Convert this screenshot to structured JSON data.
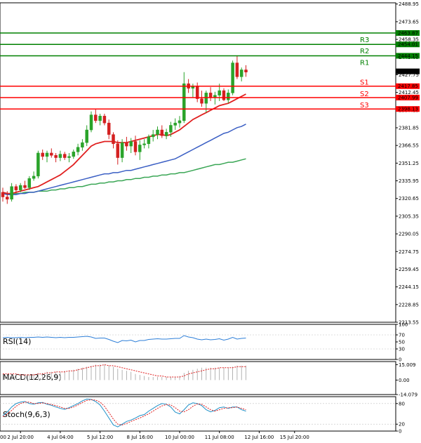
{
  "chart_data": [
    {
      "type": "candlestick",
      "panel": "price",
      "ylim": [
        2213.55,
        2490
      ],
      "y_ticks": [
        "2488.95",
        "2473.65",
        "2458.35",
        "2443.05",
        "2427.75",
        "2412.45",
        "2397.15",
        "2381.85",
        "2366.55",
        "2351.25",
        "2335.95",
        "2320.65",
        "2305.35",
        "2290.05",
        "2274.75",
        "2259.45",
        "2244.15",
        "2228.85",
        "2213.55"
      ],
      "x_ticks": [
        "2 Jul 20:00",
        "4 Jul 04:00",
        "5 Jul 12:00",
        "8 Jul 16:00",
        "10 Jul 00:00",
        "11 Jul 08:00",
        "12 Jul 16:00",
        "15 Jul 20:00"
      ],
      "x_tick_index": [
        4,
        13,
        22,
        31,
        40,
        49,
        58,
        66
      ],
      "candles": [
        [
          2326,
          2330,
          2318,
          2322
        ],
        [
          2322,
          2327,
          2316,
          2320
        ],
        [
          2320,
          2334,
          2318,
          2331
        ],
        [
          2331,
          2333,
          2325,
          2328
        ],
        [
          2328,
          2334,
          2326,
          2332
        ],
        [
          2332,
          2336,
          2329,
          2330
        ],
        [
          2330,
          2340,
          2328,
          2338
        ],
        [
          2338,
          2344,
          2336,
          2340
        ],
        [
          2340,
          2362,
          2338,
          2360
        ],
        [
          2360,
          2363,
          2354,
          2357
        ],
        [
          2357,
          2362,
          2352,
          2360
        ],
        [
          2360,
          2364,
          2356,
          2358
        ],
        [
          2358,
          2360,
          2352,
          2356
        ],
        [
          2356,
          2362,
          2353,
          2359
        ],
        [
          2359,
          2361,
          2354,
          2356
        ],
        [
          2356,
          2360,
          2352,
          2357
        ],
        [
          2357,
          2363,
          2355,
          2361
        ],
        [
          2361,
          2368,
          2358,
          2365
        ],
        [
          2365,
          2372,
          2362,
          2369
        ],
        [
          2369,
          2384,
          2366,
          2380
        ],
        [
          2380,
          2396,
          2378,
          2393
        ],
        [
          2393,
          2398,
          2386,
          2388
        ],
        [
          2388,
          2394,
          2384,
          2392
        ],
        [
          2392,
          2394,
          2384,
          2386
        ],
        [
          2386,
          2389,
          2372,
          2376
        ],
        [
          2376,
          2378,
          2364,
          2368
        ],
        [
          2368,
          2371,
          2350,
          2356
        ],
        [
          2356,
          2372,
          2352,
          2369
        ],
        [
          2369,
          2374,
          2362,
          2366
        ],
        [
          2366,
          2373,
          2360,
          2370
        ],
        [
          2370,
          2375,
          2358,
          2361
        ],
        [
          2361,
          2371,
          2354,
          2367
        ],
        [
          2367,
          2372,
          2364,
          2368
        ],
        [
          2368,
          2376,
          2364,
          2374
        ],
        [
          2374,
          2380,
          2370,
          2376
        ],
        [
          2376,
          2383,
          2372,
          2380
        ],
        [
          2380,
          2384,
          2373,
          2375
        ],
        [
          2375,
          2381,
          2372,
          2378
        ],
        [
          2378,
          2387,
          2374,
          2384
        ],
        [
          2384,
          2390,
          2380,
          2386
        ],
        [
          2386,
          2392,
          2382,
          2388
        ],
        [
          2388,
          2430,
          2386,
          2420
        ],
        [
          2420,
          2424,
          2412,
          2416
        ],
        [
          2416,
          2420,
          2408,
          2418
        ],
        [
          2418,
          2421,
          2404,
          2407
        ],
        [
          2407,
          2414,
          2400,
          2403
        ],
        [
          2403,
          2414,
          2395,
          2412
        ],
        [
          2412,
          2417,
          2405,
          2408
        ],
        [
          2408,
          2413,
          2402,
          2410
        ],
        [
          2410,
          2420,
          2405,
          2414
        ],
        [
          2414,
          2416,
          2405,
          2406
        ],
        [
          2406,
          2415,
          2403,
          2412
        ],
        [
          2412,
          2440,
          2410,
          2438
        ],
        [
          2438,
          2444,
          2424,
          2426
        ],
        [
          2426,
          2434,
          2422,
          2432
        ],
        [
          2432,
          2436,
          2426,
          2430
        ]
      ],
      "ma_red": [
        2326,
        2325,
        2325,
        2326,
        2327,
        2328,
        2329,
        2330,
        2331,
        2333,
        2335,
        2337,
        2339,
        2341,
        2344,
        2347,
        2350,
        2354,
        2358,
        2362,
        2366,
        2368,
        2369,
        2370,
        2370,
        2370,
        2369,
        2369,
        2369,
        2370,
        2371,
        2372,
        2373,
        2374,
        2375,
        2376,
        2376,
        2375,
        2376,
        2378,
        2380,
        2383,
        2386,
        2389,
        2391,
        2393,
        2395,
        2397,
        2399,
        2401,
        2402,
        2403,
        2405,
        2407,
        2409,
        2411
      ],
      "ma_blue": [
        2325,
        2324,
        2324,
        2324,
        2325,
        2325,
        2326,
        2326,
        2327,
        2328,
        2329,
        2330,
        2331,
        2332,
        2333,
        2334,
        2335,
        2336,
        2337,
        2338,
        2339,
        2340,
        2341,
        2342,
        2342,
        2343,
        2343,
        2344,
        2345,
        2345,
        2346,
        2347,
        2348,
        2349,
        2350,
        2351,
        2352,
        2353,
        2354,
        2355,
        2357,
        2359,
        2361,
        2363,
        2365,
        2367,
        2369,
        2371,
        2373,
        2375,
        2377,
        2378,
        2380,
        2382,
        2383,
        2385
      ],
      "ma_green": [
        2325,
        2325,
        2325,
        2325,
        2325,
        2326,
        2326,
        2326,
        2327,
        2327,
        2327,
        2328,
        2328,
        2329,
        2329,
        2330,
        2330,
        2331,
        2331,
        2332,
        2333,
        2333,
        2334,
        2334,
        2335,
        2335,
        2336,
        2336,
        2337,
        2337,
        2338,
        2338,
        2339,
        2339,
        2340,
        2340,
        2341,
        2341,
        2342,
        2342,
        2343,
        2343,
        2344,
        2345,
        2346,
        2347,
        2348,
        2349,
        2350,
        2350,
        2351,
        2352,
        2352,
        2353,
        2354,
        2355
      ],
      "levels": [
        {
          "name": "R3",
          "value": 2463.87,
          "label": "2463.87",
          "color": "#008000"
        },
        {
          "name": "R2",
          "value": 2454.01,
          "label": "2454.01",
          "color": "#008000"
        },
        {
          "name": "R1",
          "value": 2444.15,
          "label": "2444.15",
          "color": "#008000"
        },
        {
          "name": "S1",
          "value": 2417.85,
          "label": "2417.85",
          "color": "#ff0000"
        },
        {
          "name": "S2",
          "value": 2407.99,
          "label": "2407.99",
          "color": "#ff0000"
        },
        {
          "name": "S3",
          "value": 2398.13,
          "label": "2398.13",
          "color": "#ff0000"
        }
      ],
      "current_price": {
        "value": 2430.67,
        "label": "2430.67"
      }
    },
    {
      "type": "line",
      "panel": "rsi",
      "label": "RSI(14)",
      "ylim": [
        0,
        100
      ],
      "y_ticks": [
        "100",
        "70",
        "50",
        "30",
        "0"
      ],
      "values": [
        62,
        63,
        62,
        62,
        63,
        62,
        63,
        63,
        64,
        63,
        64,
        63,
        62,
        63,
        62,
        63,
        63,
        64,
        65,
        66,
        64,
        60,
        61,
        61,
        57,
        52,
        48,
        54,
        53,
        55,
        50,
        54,
        54,
        57,
        58,
        59,
        58,
        58,
        59,
        60,
        60,
        68,
        64,
        62,
        58,
        56,
        58,
        56,
        57,
        59,
        55,
        58,
        63,
        58,
        60,
        61
      ]
    },
    {
      "type": "bar",
      "panel": "macd",
      "label": "MACD(12,26,9)",
      "ylim": [
        -14.079,
        18
      ],
      "y_ticks": [
        "15.009",
        "0.00",
        "-14.079"
      ],
      "histogram": [
        6,
        6,
        5,
        5,
        5,
        5,
        5,
        6,
        7,
        7,
        8,
        8,
        8,
        8,
        9,
        9,
        10,
        11,
        12,
        13,
        14,
        15,
        15,
        15,
        14,
        13,
        11,
        10,
        9,
        8,
        6,
        5,
        4,
        3,
        3,
        3,
        3,
        3,
        3,
        3,
        4,
        7,
        9,
        10,
        11,
        12,
        12,
        12,
        12,
        12,
        12,
        12,
        13,
        14,
        14,
        14
      ],
      "signal": [
        6,
        6,
        6,
        6,
        5,
        5,
        5,
        5,
        6,
        6,
        7,
        7,
        8,
        8,
        8,
        9,
        9,
        10,
        11,
        12,
        13,
        14,
        14,
        15,
        14,
        14,
        13,
        12,
        11,
        10,
        9,
        8,
        7,
        6,
        5,
        4,
        4,
        3,
        3,
        3,
        3,
        4,
        6,
        7,
        8,
        9,
        10,
        11,
        11,
        12,
        12,
        12,
        12,
        13,
        13,
        13
      ]
    },
    {
      "type": "line",
      "panel": "stoch",
      "label": "Stoch(9,6,3)",
      "ylim": [
        0,
        100
      ],
      "y_ticks": [
        "80",
        "20",
        "0"
      ],
      "main": [
        45,
        55,
        70,
        80,
        84,
        86,
        80,
        78,
        82,
        83,
        78,
        75,
        70,
        66,
        63,
        68,
        74,
        80,
        88,
        93,
        92,
        86,
        76,
        58,
        38,
        18,
        12,
        20,
        28,
        32,
        38,
        45,
        48,
        58,
        66,
        74,
        80,
        78,
        70,
        55,
        50,
        62,
        76,
        82,
        80,
        74,
        62,
        56,
        60,
        68,
        70,
        66,
        70,
        70,
        62,
        58
      ],
      "signal": [
        42,
        50,
        60,
        72,
        80,
        84,
        84,
        80,
        80,
        82,
        80,
        77,
        74,
        70,
        66,
        66,
        70,
        76,
        83,
        89,
        91,
        90,
        84,
        72,
        54,
        35,
        20,
        18,
        22,
        28,
        33,
        38,
        44,
        50,
        58,
        66,
        73,
        77,
        76,
        68,
        58,
        56,
        62,
        72,
        79,
        78,
        70,
        62,
        58,
        62,
        66,
        68,
        68,
        70,
        66,
        62
      ]
    }
  ]
}
